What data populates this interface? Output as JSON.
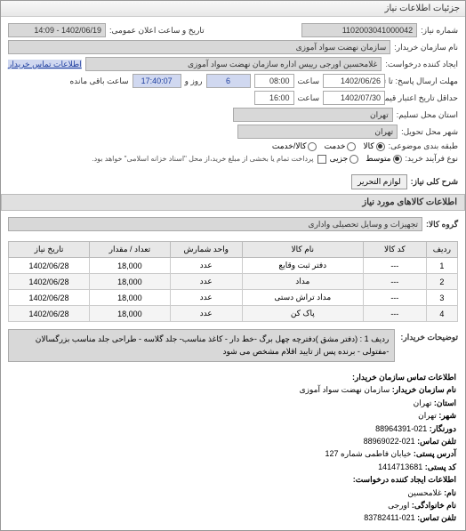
{
  "titlebar": "جزئیات اطلاعات نیاز",
  "header": {
    "number_label": "شماره نیاز:",
    "number_value": "1102003041000042",
    "announce_label": "تاریخ و ساعت اعلان عمومی:",
    "announce_value": "1402/06/19 - 14:09"
  },
  "buyer": {
    "name_label": "نام سازمان خریدار:",
    "name_value": "سازمان نهضت سواد آموزی",
    "requester_label": "ایجاد کننده درخواست:",
    "requester_value": "غلامحسین اورجی رییس اداره سازمان نهضت سواد آموزی",
    "contact_link": "اطلاعات تماس خریدار"
  },
  "dates": {
    "deadline_label": "مهلت ارسال پاسخ: تا تاریخ:",
    "deadline_date": "1402/06/26",
    "deadline_time_label": "ساعت",
    "deadline_time": "08:00",
    "days_label": "روز و",
    "days_value": "6",
    "remain_label": "ساعت باقی مانده",
    "remain_value": "17:40:07",
    "validity_label": "حداقل تاریخ اعتبار قیمت: تا تاریخ:",
    "validity_date": "1402/07/30",
    "validity_time_label": "ساعت",
    "validity_time": "16:00"
  },
  "location": {
    "province_label": "استان محل تسلیم:",
    "province_value": "تهران",
    "city_label": "شهر محل تحویل:",
    "city_value": "تهران"
  },
  "category": {
    "label": "طبقه بندی موضوعی:",
    "options": [
      {
        "label": "کالا",
        "checked": true
      },
      {
        "label": "خدمت",
        "checked": false
      },
      {
        "label": "کالا/خدمت",
        "checked": false
      }
    ]
  },
  "process_type": {
    "label": "نوع فرآیند خرید:",
    "options": [
      {
        "label": "متوسط",
        "checked": true
      },
      {
        "label": "جزیی",
        "checked": false
      }
    ],
    "note": "پرداخت تمام یا بخشی از مبلغ خرید،از محل \"اسناد خزانه اسلامی\" خواهد بود.",
    "checkbox_checked": false
  },
  "need_desc": {
    "label": "شرح کلی نیاز:",
    "tag": "لوازم التحریر"
  },
  "goods_section": {
    "header": "اطلاعات کالاهای مورد نیاز",
    "group_label": "گروه کالا:",
    "group_value": "تجهیزات و وسایل تحصیلی واداری"
  },
  "table": {
    "columns": [
      "ردیف",
      "کد کالا",
      "نام کالا",
      "واحد شمارش",
      "تعداد / مقدار",
      "تاریخ نیاز"
    ],
    "rows": [
      [
        "1",
        "---",
        "دفتر ثبت وقایع",
        "عدد",
        "18,000",
        "1402/06/28"
      ],
      [
        "2",
        "---",
        "مداد",
        "عدد",
        "18,000",
        "1402/06/28"
      ],
      [
        "3",
        "---",
        "مداد تراش دستی",
        "عدد",
        "18,000",
        "1402/06/28"
      ],
      [
        "4",
        "---",
        "پاک کن",
        "عدد",
        "18,000",
        "1402/06/28"
      ]
    ],
    "col_widths": [
      "7%",
      "14%",
      "27%",
      "16%",
      "18%",
      "18%"
    ]
  },
  "description": {
    "label": "توضیحات خریدار:",
    "text": "ردیف 1 : (دفتر مشق )دفترچه چهل برگ -خط دار - کاغذ مناسب- جلد گلاسه - طراحی جلد مناسب بزرگسالان -مفتولی - برنده پس از تایید اقلام مشخص می شود"
  },
  "contact": {
    "header": "اطلاعات تماس سازمان خریدار:",
    "org_label": "نام سازمان خریدار:",
    "org_value": "سازمان نهضت سواد آموزی",
    "province_label": "استان:",
    "province_value": "تهران",
    "city_label": "شهر:",
    "city_value": "تهران",
    "fax_label": "دورنگار:",
    "fax_value": "021-88964391",
    "phone_label": "تلفن تماس:",
    "phone_value": "021-88969022",
    "address_label": "آدرس پستی:",
    "address_value": "خیابان فاطمی شماره 127",
    "postal_label": "کد پستی:",
    "postal_value": "1414713681",
    "requester_header": "اطلاعات ایجاد کننده درخواست:",
    "name_label": "نام:",
    "name_value": "غلامحسین",
    "family_label": "نام خانوادگی:",
    "family_value": "اورجی",
    "req_phone_label": "تلفن تماس:",
    "req_phone_value": "021-83782411"
  }
}
